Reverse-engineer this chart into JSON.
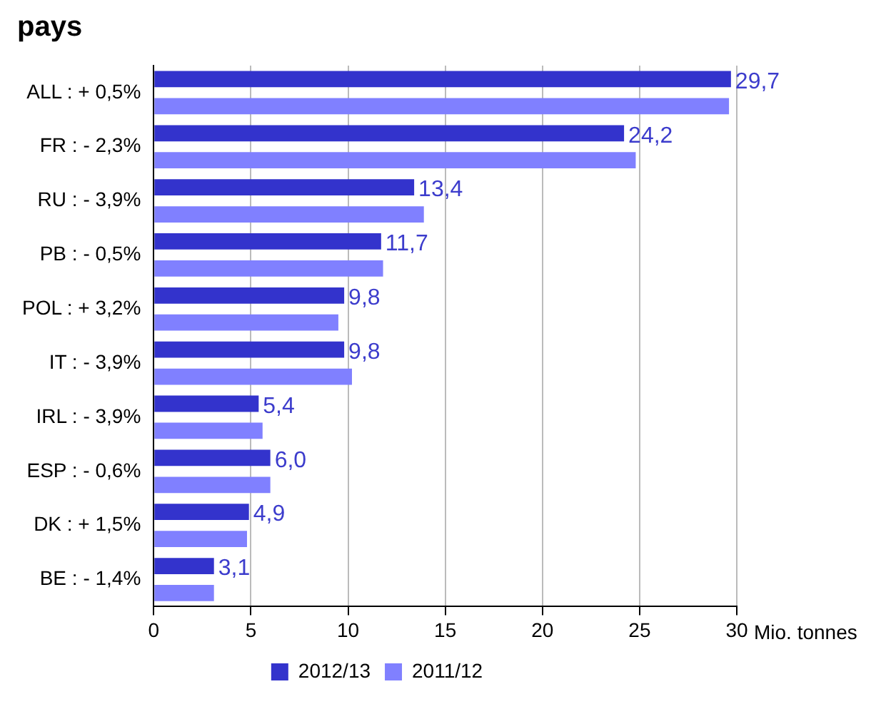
{
  "chart_data": {
    "type": "bar",
    "orientation": "horizontal",
    "title": "pays",
    "xlabel": "Mio. tonnes",
    "categories": [
      "ALL : + 0,5%",
      "FR : - 2,3%",
      "RU : - 3,9%",
      "PB : - 0,5%",
      "POL : + 3,2%",
      "IT : - 3,9%",
      "IRL : - 3,9%",
      "ESP : - 0,6%",
      "DK : + 1,5%",
      "BE : - 1,4%"
    ],
    "series": [
      {
        "name": "2012/13",
        "color": "#3333cc",
        "values": [
          29.7,
          24.2,
          13.4,
          11.7,
          9.8,
          9.8,
          5.4,
          6.0,
          4.9,
          3.1
        ],
        "value_labels": [
          "29,7",
          "24,2",
          "13,4",
          "11,7",
          "9,8",
          "9,8",
          "5,4",
          "6,0",
          "4,9",
          "3,1"
        ]
      },
      {
        "name": "2011/12",
        "color": "#8080ff",
        "values": [
          29.6,
          24.8,
          13.9,
          11.8,
          9.5,
          10.2,
          5.6,
          6.0,
          4.8,
          3.1
        ]
      }
    ],
    "xlim": [
      0,
      30
    ],
    "xticks": [
      0,
      5,
      10,
      15,
      20,
      25,
      30
    ],
    "grid": "x",
    "legend": "bottom"
  }
}
